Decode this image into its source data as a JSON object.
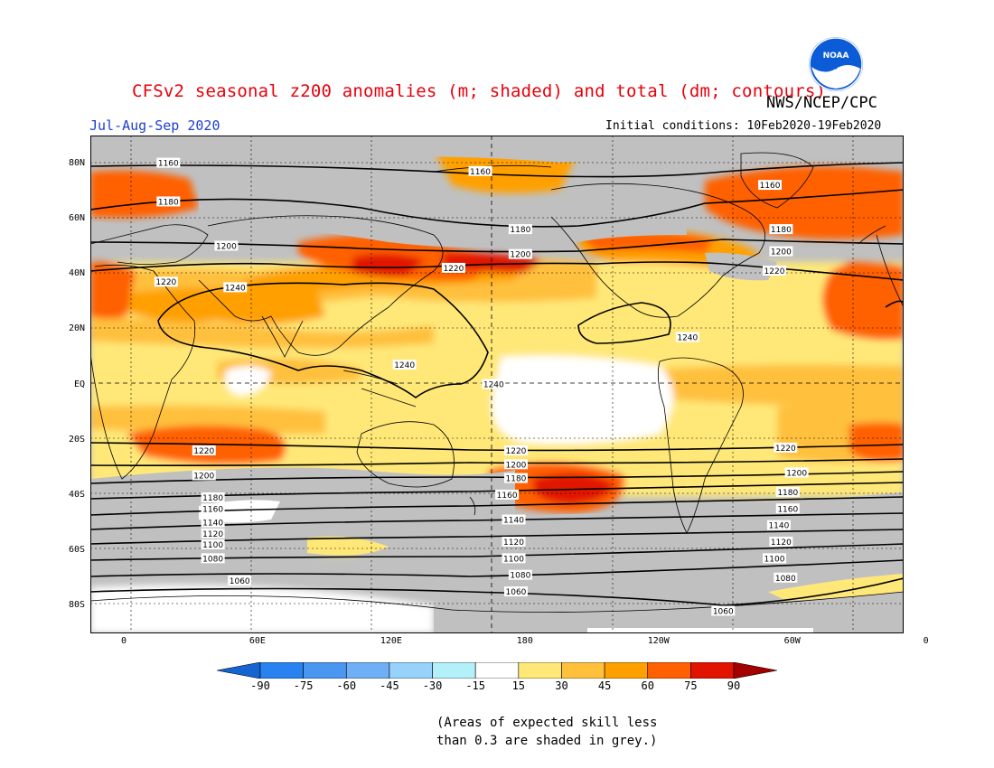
{
  "header": {
    "title": "CFSv2 seasonal z200 anomalies (m; shaded) and total (dm; contours)",
    "agency": "NWS/NCEP/CPC",
    "season": "Jul-Aug-Sep 2020",
    "initial_conditions": "Initial conditions: 10Feb2020-19Feb2020",
    "logo_text": "NOAA"
  },
  "map": {
    "projection": "cylindrical equidistant",
    "lon_labels": [
      "0",
      "60E",
      "120E",
      "180",
      "120W",
      "60W",
      "0"
    ],
    "lat_labels": [
      "80N",
      "60N",
      "40N",
      "20N",
      "EQ",
      "20S",
      "40S",
      "60S",
      "80S"
    ],
    "grey_meaning": "skill < 0.3",
    "contour_labels": [
      {
        "text": "1160",
        "lon": 20,
        "lat": 80
      },
      {
        "text": "1160",
        "lon": 160,
        "lat": 77
      },
      {
        "text": "1160",
        "lon": 290,
        "lat": 72
      },
      {
        "text": "1180",
        "lon": 20,
        "lat": 66
      },
      {
        "text": "1180",
        "lon": 178,
        "lat": 56
      },
      {
        "text": "1180",
        "lon": 295,
        "lat": 56
      },
      {
        "text": "1200",
        "lon": 46,
        "lat": 50
      },
      {
        "text": "1200",
        "lon": 178,
        "lat": 47
      },
      {
        "text": "1200",
        "lon": 295,
        "lat": 48
      },
      {
        "text": "1220",
        "lon": 148,
        "lat": 42
      },
      {
        "text": "1220",
        "lon": 292,
        "lat": 41
      },
      {
        "text": "1220",
        "lon": 19,
        "lat": 37
      },
      {
        "text": "1240",
        "lon": 50,
        "lat": 35
      },
      {
        "text": "1240",
        "lon": 253,
        "lat": 17
      },
      {
        "text": "1240",
        "lon": 126,
        "lat": 7
      },
      {
        "text": "1240",
        "lon": 166,
        "lat": 0
      },
      {
        "text": "1220",
        "lon": 36,
        "lat": -24
      },
      {
        "text": "1220",
        "lon": 176,
        "lat": -24
      },
      {
        "text": "1220",
        "lon": 297,
        "lat": -23
      },
      {
        "text": "1200",
        "lon": 36,
        "lat": -33
      },
      {
        "text": "1200",
        "lon": 176,
        "lat": -29
      },
      {
        "text": "1200",
        "lon": 302,
        "lat": -32
      },
      {
        "text": "1180",
        "lon": 40,
        "lat": -41
      },
      {
        "text": "1180",
        "lon": 176,
        "lat": -34
      },
      {
        "text": "1180",
        "lon": 298,
        "lat": -39
      },
      {
        "text": "1160",
        "lon": 40,
        "lat": -45
      },
      {
        "text": "1160",
        "lon": 172,
        "lat": -40
      },
      {
        "text": "1160",
        "lon": 298,
        "lat": -45
      },
      {
        "text": "1140",
        "lon": 40,
        "lat": -50
      },
      {
        "text": "1140",
        "lon": 175,
        "lat": -49
      },
      {
        "text": "1140",
        "lon": 294,
        "lat": -51
      },
      {
        "text": "1120",
        "lon": 40,
        "lat": -54
      },
      {
        "text": "1120",
        "lon": 175,
        "lat": -57
      },
      {
        "text": "1120",
        "lon": 295,
        "lat": -57
      },
      {
        "text": "1100",
        "lon": 40,
        "lat": -58
      },
      {
        "text": "1100",
        "lon": 175,
        "lat": -63
      },
      {
        "text": "1100",
        "lon": 292,
        "lat": -63
      },
      {
        "text": "1080",
        "lon": 40,
        "lat": -63
      },
      {
        "text": "1080",
        "lon": 178,
        "lat": -69
      },
      {
        "text": "1080",
        "lon": 297,
        "lat": -70
      },
      {
        "text": "1060",
        "lon": 52,
        "lat": -71
      },
      {
        "text": "1060",
        "lon": 176,
        "lat": -75
      },
      {
        "text": "1060",
        "lon": 269,
        "lat": -82
      }
    ]
  },
  "colorbar": {
    "labels": [
      "-90",
      "-75",
      "-60",
      "-45",
      "-30",
      "-15",
      "15",
      "30",
      "45",
      "60",
      "75",
      "90"
    ],
    "colors": [
      "#1464d2",
      "#2882f0",
      "#4a96f0",
      "#6eaff5",
      "#96d2fa",
      "#b4f0fa",
      "#ffffff",
      "#ffe878",
      "#ffc03c",
      "#ffa000",
      "#ff6000",
      "#e11400",
      "#a50000"
    ]
  },
  "note": {
    "line1": "(Areas of expected skill less",
    "line2": "than 0.3 are shaded in grey.)"
  }
}
